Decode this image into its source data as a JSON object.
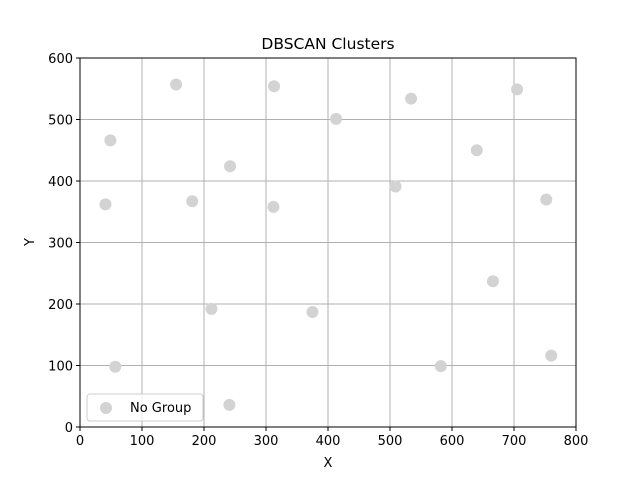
{
  "chart_data": {
    "type": "scatter",
    "title": "DBSCAN Clusters",
    "xlabel": "X",
    "ylabel": "Y",
    "xlim": [
      0,
      800
    ],
    "ylim": [
      0,
      600
    ],
    "xticks": [
      0,
      100,
      200,
      300,
      400,
      500,
      600,
      700,
      800
    ],
    "yticks": [
      0,
      100,
      200,
      300,
      400,
      500,
      600
    ],
    "grid": true,
    "legend": {
      "placement": "lower-left",
      "entries": [
        "No Group"
      ]
    },
    "series": [
      {
        "name": "No Group",
        "color": "#d3d3d3",
        "points": [
          [
            155,
            557
          ],
          [
            313,
            554
          ],
          [
            534,
            534
          ],
          [
            705,
            549
          ],
          [
            49,
            466
          ],
          [
            413,
            501
          ],
          [
            242,
            424
          ],
          [
            640,
            450
          ],
          [
            41,
            362
          ],
          [
            181,
            367
          ],
          [
            312,
            358
          ],
          [
            509,
            391
          ],
          [
            752,
            370
          ],
          [
            666,
            237
          ],
          [
            212,
            192
          ],
          [
            375,
            187
          ],
          [
            57,
            98
          ],
          [
            582,
            99
          ],
          [
            760,
            116
          ],
          [
            241,
            36
          ]
        ]
      }
    ]
  }
}
